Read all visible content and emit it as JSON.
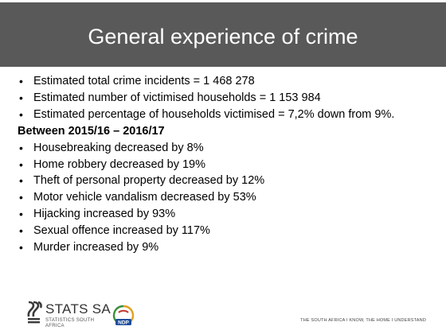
{
  "slide": {
    "title": "General experience of crime"
  },
  "summary_bullets": [
    "Estimated total crime incidents = 1 468 278",
    "Estimated number of victimised households = 1 153 984",
    "Estimated percentage of households victimised =  7,2% down from 9%."
  ],
  "period_heading": "Between 2015/16 – 2016/17",
  "change_bullets": [
    "Housebreaking decreased by 8%",
    "Home robbery decreased by 19%",
    "Theft of personal property decreased by 12%",
    "Motor vehicle vandalism decreased by 53%",
    "Hijacking increased by 93%",
    "Sexual offence increased by 117%",
    "Murder increased by 9%"
  ],
  "footer": {
    "org_name": "STATS SA",
    "org_subtitle": "STATISTICS SOUTH AFRICA",
    "ndp_text": "NDP",
    "tagline": "THE SOUTH AFRICA I KNOW, THE HOME I UNDERSTAND"
  },
  "colors": {
    "header_bg": "#595959",
    "title_text": "#ffffff",
    "body_text": "#000000",
    "ndp_blue": "#1f4e9a",
    "ndp_green": "#3b8f3b"
  },
  "icons": {
    "bullet": "bullet-icon",
    "stats_logo": "stats-sa-logo-icon",
    "ndp_logo": "ndp-logo-icon"
  }
}
